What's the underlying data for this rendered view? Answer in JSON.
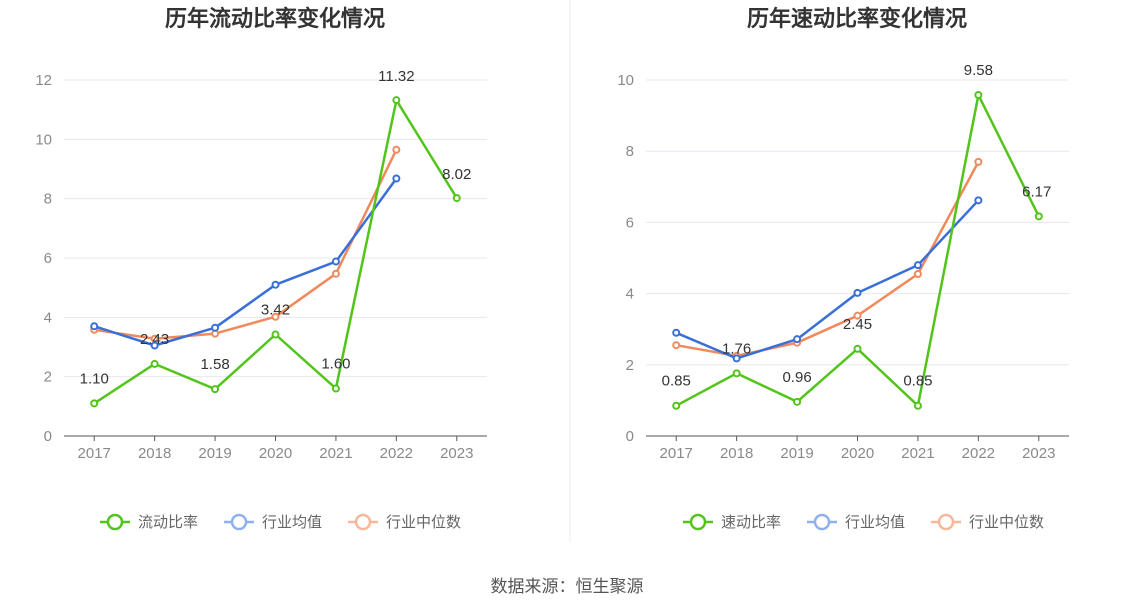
{
  "source": "数据来源：恒生聚源",
  "colors": {
    "company": "#52c41a",
    "avg": "#3a6fd8",
    "median": "#f08a5d",
    "grid": "#e6e8ef",
    "axis": "#555555"
  },
  "chart_data": [
    {
      "type": "line",
      "title": "历年流动比率变化情况",
      "categories": [
        "2017",
        "2018",
        "2019",
        "2020",
        "2021",
        "2022",
        "2023"
      ],
      "ylim": [
        0,
        12
      ],
      "yticks": [
        0,
        2,
        4,
        6,
        8,
        10,
        12
      ],
      "grid": true,
      "legend": "bottom",
      "series": [
        {
          "name": "流动比率",
          "values": [
            1.1,
            2.43,
            1.58,
            3.42,
            1.6,
            11.32,
            8.02
          ],
          "labels": [
            "1.10",
            "2.43",
            "1.58",
            "3.42",
            "1.60",
            "11.32",
            "8.02"
          ]
        },
        {
          "name": "行业均值",
          "values": [
            3.7,
            3.05,
            3.65,
            5.1,
            5.88,
            8.68,
            null
          ]
        },
        {
          "name": "行业中位数",
          "values": [
            3.58,
            3.28,
            3.45,
            4.02,
            5.47,
            9.65,
            null
          ]
        }
      ]
    },
    {
      "type": "line",
      "title": "历年速动比率变化情况",
      "categories": [
        "2017",
        "2018",
        "2019",
        "2020",
        "2021",
        "2022",
        "2023"
      ],
      "ylim": [
        0,
        10
      ],
      "yticks": [
        0,
        2,
        4,
        6,
        8,
        10
      ],
      "grid": true,
      "legend": "bottom",
      "series": [
        {
          "name": "速动比率",
          "values": [
            0.85,
            1.76,
            0.96,
            2.45,
            0.85,
            9.58,
            6.17
          ],
          "labels": [
            "0.85",
            "1.76",
            "0.96",
            "2.45",
            "0.85",
            "9.58",
            "6.17"
          ]
        },
        {
          "name": "行业均值",
          "values": [
            2.9,
            2.18,
            2.72,
            4.02,
            4.8,
            6.62,
            null
          ]
        },
        {
          "name": "行业中位数",
          "values": [
            2.55,
            2.25,
            2.62,
            3.38,
            4.55,
            7.7,
            null
          ]
        }
      ]
    }
  ]
}
